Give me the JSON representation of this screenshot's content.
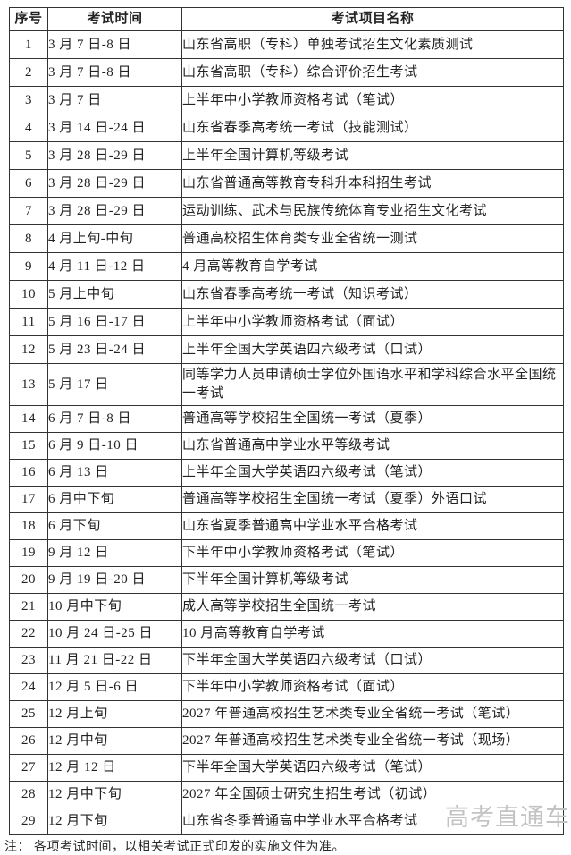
{
  "colors": {
    "background": "#ffffff",
    "border": "#333333",
    "text": "#222222",
    "watermark": "#c3c3c3"
  },
  "table": {
    "headers": [
      "序号",
      "考试时间",
      "考试项目名称"
    ],
    "rows": [
      {
        "no": "1",
        "time": "3 月 7 日-8 日",
        "name": "山东省高职（专科）单独考试招生文化素质测试"
      },
      {
        "no": "2",
        "time": "3 月 7 日-8 日",
        "name": "山东省高职（专科）综合评价招生考试"
      },
      {
        "no": "3",
        "time": "3 月 7 日",
        "name": "上半年中小学教师资格考试（笔试）"
      },
      {
        "no": "4",
        "time": "3 月 14 日-24 日",
        "name": "山东省春季高考统一考试（技能测试）"
      },
      {
        "no": "5",
        "time": "3 月 28 日-29 日",
        "name": "上半年全国计算机等级考试"
      },
      {
        "no": "6",
        "time": "3 月 28 日-29 日",
        "name": "山东省普通高等教育专科升本科招生考试"
      },
      {
        "no": "7",
        "time": "3 月 28 日-29 日",
        "name": "运动训练、武术与民族传统体育专业招生文化考试"
      },
      {
        "no": "8",
        "time": "4 月上旬-中旬",
        "name": "普通高校招生体育类专业全省统一测试"
      },
      {
        "no": "9",
        "time": "4 月 11 日-12 日",
        "name": "4 月高等教育自学考试"
      },
      {
        "no": "10",
        "time": "5 月上中旬",
        "name": "山东省春季高考统一考试（知识考试）"
      },
      {
        "no": "11",
        "time": "5 月 16 日-17 日",
        "name": "上半年中小学教师资格考试（面试）"
      },
      {
        "no": "12",
        "time": "5 月 23 日-24 日",
        "name": "上半年全国大学英语四六级考试（口试）"
      },
      {
        "no": "13",
        "time": "5 月 17 日",
        "name": "同等学力人员申请硕士学位外国语水平和学科综合水平全国统一考试"
      },
      {
        "no": "14",
        "time": "6 月 7 日-8 日",
        "name": "普通高等学校招生全国统一考试（夏季）"
      },
      {
        "no": "15",
        "time": "6 月 9 日-10 日",
        "name": "山东省普通高中学业水平等级考试"
      },
      {
        "no": "16",
        "time": "6 月 13 日",
        "name": "上半年全国大学英语四六级考试（笔试）"
      },
      {
        "no": "17",
        "time": "6 月中下旬",
        "name": "普通高等学校招生全国统一考试（夏季）外语口试"
      },
      {
        "no": "18",
        "time": "6 月下旬",
        "name": "山东省夏季普通高中学业水平合格考试"
      },
      {
        "no": "19",
        "time": "9 月 12 日",
        "name": "下半年中小学教师资格考试（笔试）"
      },
      {
        "no": "20",
        "time": "9 月 19 日-20 日",
        "name": "下半年全国计算机等级考试"
      },
      {
        "no": "21",
        "time": "10 月中下旬",
        "name": "成人高等学校招生全国统一考试"
      },
      {
        "no": "22",
        "time": "10 月 24 日-25 日",
        "name": "10 月高等教育自学考试"
      },
      {
        "no": "23",
        "time": "11 月 21 日-22 日",
        "name": "下半年全国大学英语四六级考试（口试）"
      },
      {
        "no": "24",
        "time": "12 月 5 日-6 日",
        "name": "下半年中小学教师资格考试（面试）"
      },
      {
        "no": "25",
        "time": "12 月上旬",
        "name": "2027 年普通高校招生艺术类专业全省统一考试（笔试）"
      },
      {
        "no": "26",
        "time": "12 月中旬",
        "name": "2027 年普通高校招生艺术类专业全省统一考试（现场）"
      },
      {
        "no": "27",
        "time": "12 月 12 日",
        "name": "下半年全国大学英语四六级考试（笔试）"
      },
      {
        "no": "28",
        "time": "12 月中下旬",
        "name": "2027 年全国硕士研究生招生考试（初试）"
      },
      {
        "no": "29",
        "time": "12 月下旬",
        "name": "山东省冬季普通高中学业水平合格考试"
      }
    ]
  },
  "watermark": {
    "text": "高考直通车"
  },
  "note": {
    "text": "注： 各项考试时间，以相关考试正式印发的实施文件为准。"
  }
}
